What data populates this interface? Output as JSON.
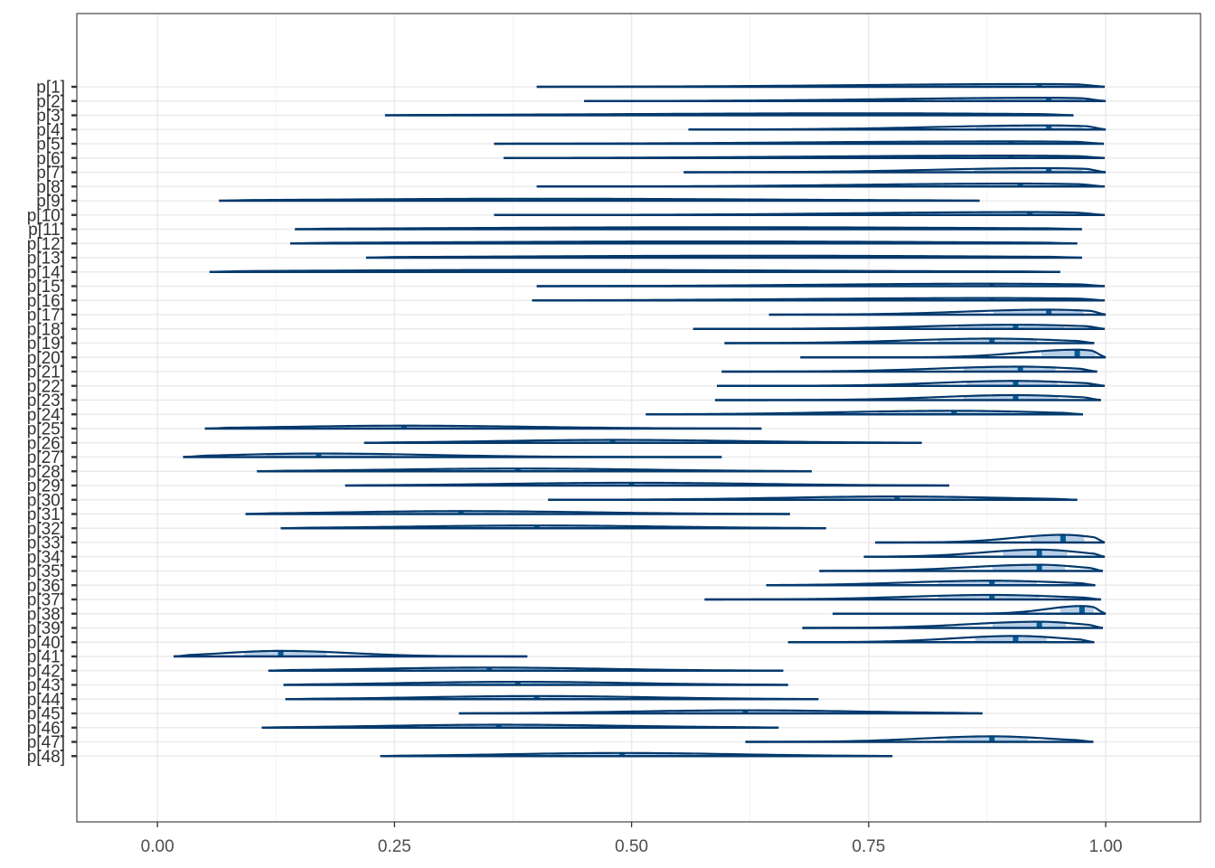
{
  "chart_data": {
    "type": "ridgeline",
    "title": "",
    "xlabel": "",
    "ylabel": "",
    "xlim": [
      -0.085,
      1.1
    ],
    "x_ticks": [
      0.0,
      0.25,
      0.5,
      0.75,
      1.0
    ],
    "x_tick_labels": [
      "0.00",
      "0.25",
      "0.50",
      "0.75",
      "1.00"
    ],
    "grid": true,
    "colors": {
      "line": "#03396c",
      "fill": "#b9cfe7",
      "median": "#005b96",
      "grid": "#ebebeb",
      "border": "#333333"
    },
    "series": [
      {
        "label": "p[1]",
        "min": 0.4,
        "max": 0.999,
        "median": 0.93,
        "q_low": 0.8,
        "q_high": 0.98
      },
      {
        "label": "p[2]",
        "min": 0.45,
        "max": 1.0,
        "median": 0.94,
        "q_low": 0.83,
        "q_high": 0.98
      },
      {
        "label": "p[3]",
        "min": 0.24,
        "max": 0.966,
        "median": 0.75,
        "q_low": 0.58,
        "q_high": 0.87
      },
      {
        "label": "p[4]",
        "min": 0.56,
        "max": 1.0,
        "median": 0.94,
        "q_low": 0.86,
        "q_high": 0.98
      },
      {
        "label": "p[5]",
        "min": 0.355,
        "max": 0.998,
        "median": 0.9,
        "q_low": 0.76,
        "q_high": 0.97
      },
      {
        "label": "p[6]",
        "min": 0.365,
        "max": 0.999,
        "median": 0.9,
        "q_low": 0.76,
        "q_high": 0.97
      },
      {
        "label": "p[7]",
        "min": 0.555,
        "max": 1.0,
        "median": 0.94,
        "q_low": 0.86,
        "q_high": 0.98
      },
      {
        "label": "p[8]",
        "min": 0.4,
        "max": 0.999,
        "median": 0.91,
        "q_low": 0.8,
        "q_high": 0.97
      },
      {
        "label": "p[9]",
        "min": 0.065,
        "max": 0.867,
        "median": 0.4,
        "q_low": 0.26,
        "q_high": 0.56
      },
      {
        "label": "p[10]",
        "min": 0.355,
        "max": 0.999,
        "median": 0.92,
        "q_low": 0.8,
        "q_high": 0.97
      },
      {
        "label": "p[11]",
        "min": 0.145,
        "max": 0.975,
        "median": 0.6,
        "q_low": 0.42,
        "q_high": 0.78
      },
      {
        "label": "p[12]",
        "min": 0.14,
        "max": 0.97,
        "median": 0.58,
        "q_low": 0.4,
        "q_high": 0.76
      },
      {
        "label": "p[13]",
        "min": 0.22,
        "max": 0.975,
        "median": 0.64,
        "q_low": 0.46,
        "q_high": 0.8
      },
      {
        "label": "p[14]",
        "min": 0.055,
        "max": 0.952,
        "median": 0.4,
        "q_low": 0.24,
        "q_high": 0.6
      },
      {
        "label": "p[15]",
        "min": 0.4,
        "max": 0.999,
        "median": 0.88,
        "q_low": 0.76,
        "q_high": 0.96
      },
      {
        "label": "p[16]",
        "min": 0.395,
        "max": 0.999,
        "median": 0.88,
        "q_low": 0.75,
        "q_high": 0.96
      },
      {
        "label": "p[17]",
        "min": 0.645,
        "max": 1.0,
        "median": 0.94,
        "q_low": 0.88,
        "q_high": 0.98
      },
      {
        "label": "p[18]",
        "min": 0.565,
        "max": 0.999,
        "median": 0.905,
        "q_low": 0.84,
        "q_high": 0.96
      },
      {
        "label": "p[19]",
        "min": 0.598,
        "max": 0.988,
        "median": 0.88,
        "q_low": 0.82,
        "q_high": 0.93
      },
      {
        "label": "p[20]",
        "min": 0.678,
        "max": 1.0,
        "median": 0.97,
        "q_low": 0.93,
        "q_high": 0.99
      },
      {
        "label": "p[21]",
        "min": 0.595,
        "max": 0.991,
        "median": 0.91,
        "q_low": 0.85,
        "q_high": 0.95
      },
      {
        "label": "p[22]",
        "min": 0.59,
        "max": 0.999,
        "median": 0.905,
        "q_low": 0.85,
        "q_high": 0.95
      },
      {
        "label": "p[23]",
        "min": 0.588,
        "max": 0.995,
        "median": 0.905,
        "q_low": 0.85,
        "q_high": 0.95
      },
      {
        "label": "p[24]",
        "min": 0.515,
        "max": 0.976,
        "median": 0.84,
        "q_low": 0.76,
        "q_high": 0.9
      },
      {
        "label": "p[25]",
        "min": 0.05,
        "max": 0.637,
        "median": 0.26,
        "q_low": 0.18,
        "q_high": 0.35
      },
      {
        "label": "p[26]",
        "min": 0.218,
        "max": 0.806,
        "median": 0.48,
        "q_low": 0.4,
        "q_high": 0.57
      },
      {
        "label": "p[27]",
        "min": 0.027,
        "max": 0.595,
        "median": 0.17,
        "q_low": 0.11,
        "q_high": 0.25
      },
      {
        "label": "p[28]",
        "min": 0.105,
        "max": 0.69,
        "median": 0.38,
        "q_low": 0.29,
        "q_high": 0.47
      },
      {
        "label": "p[29]",
        "min": 0.198,
        "max": 0.835,
        "median": 0.5,
        "q_low": 0.41,
        "q_high": 0.59
      },
      {
        "label": "p[30]",
        "min": 0.412,
        "max": 0.97,
        "median": 0.78,
        "q_low": 0.7,
        "q_high": 0.85
      },
      {
        "label": "p[31]",
        "min": 0.093,
        "max": 0.667,
        "median": 0.32,
        "q_low": 0.24,
        "q_high": 0.41
      },
      {
        "label": "p[32]",
        "min": 0.13,
        "max": 0.705,
        "median": 0.4,
        "q_low": 0.31,
        "q_high": 0.49
      },
      {
        "label": "p[33]",
        "min": 0.757,
        "max": 0.999,
        "median": 0.955,
        "q_low": 0.92,
        "q_high": 0.98
      },
      {
        "label": "p[34]",
        "min": 0.745,
        "max": 0.999,
        "median": 0.93,
        "q_low": 0.89,
        "q_high": 0.96
      },
      {
        "label": "p[35]",
        "min": 0.698,
        "max": 0.997,
        "median": 0.93,
        "q_low": 0.88,
        "q_high": 0.96
      },
      {
        "label": "p[36]",
        "min": 0.642,
        "max": 0.989,
        "median": 0.88,
        "q_low": 0.82,
        "q_high": 0.93
      },
      {
        "label": "p[37]",
        "min": 0.577,
        "max": 0.995,
        "median": 0.88,
        "q_low": 0.82,
        "q_high": 0.93
      },
      {
        "label": "p[38]",
        "min": 0.712,
        "max": 1.0,
        "median": 0.975,
        "q_low": 0.95,
        "q_high": 0.99
      },
      {
        "label": "p[39]",
        "min": 0.68,
        "max": 0.997,
        "median": 0.93,
        "q_low": 0.88,
        "q_high": 0.96
      },
      {
        "label": "p[40]",
        "min": 0.665,
        "max": 0.988,
        "median": 0.905,
        "q_low": 0.86,
        "q_high": 0.94
      },
      {
        "label": "p[41]",
        "min": 0.017,
        "max": 0.39,
        "median": 0.13,
        "q_low": 0.09,
        "q_high": 0.18
      },
      {
        "label": "p[42]",
        "min": 0.117,
        "max": 0.66,
        "median": 0.35,
        "q_low": 0.27,
        "q_high": 0.43
      },
      {
        "label": "p[43]",
        "min": 0.133,
        "max": 0.665,
        "median": 0.38,
        "q_low": 0.3,
        "q_high": 0.46
      },
      {
        "label": "p[44]",
        "min": 0.135,
        "max": 0.697,
        "median": 0.4,
        "q_low": 0.32,
        "q_high": 0.48
      },
      {
        "label": "p[45]",
        "min": 0.318,
        "max": 0.87,
        "median": 0.62,
        "q_low": 0.54,
        "q_high": 0.7
      },
      {
        "label": "p[46]",
        "min": 0.11,
        "max": 0.655,
        "median": 0.36,
        "q_low": 0.28,
        "q_high": 0.45
      },
      {
        "label": "p[47]",
        "min": 0.62,
        "max": 0.987,
        "median": 0.88,
        "q_low": 0.83,
        "q_high": 0.92
      },
      {
        "label": "p[48]",
        "min": 0.235,
        "max": 0.775,
        "median": 0.49,
        "q_low": 0.41,
        "q_high": 0.57
      }
    ]
  }
}
